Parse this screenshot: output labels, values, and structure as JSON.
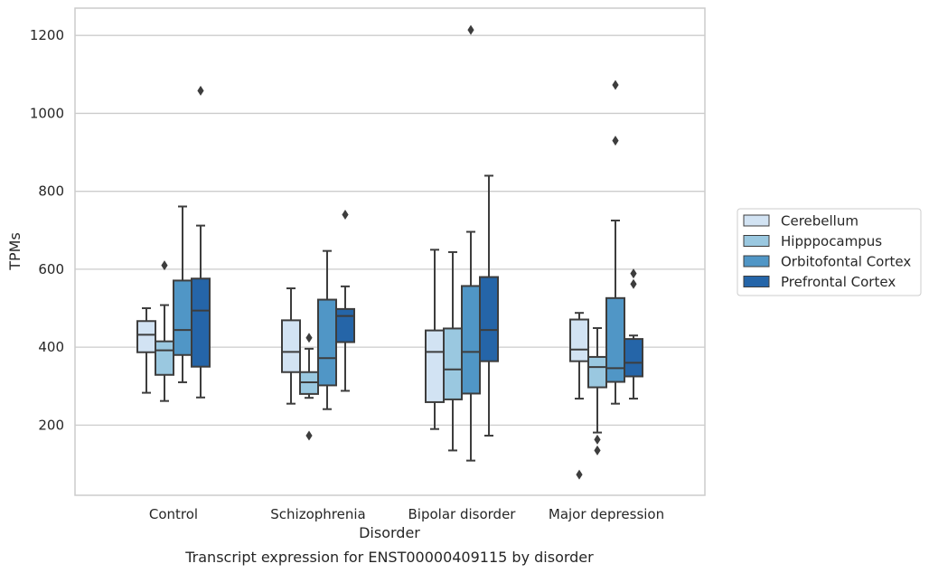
{
  "chart_data": {
    "type": "boxplot",
    "caption": "Transcript expression for ENST00000409115 by disorder",
    "xlabel": "Disorder",
    "ylabel": "TPMs",
    "ylim": [
      20,
      1270
    ],
    "yticks": [
      200,
      400,
      600,
      800,
      1000,
      1200
    ],
    "grid": "horizontal",
    "legend_position": "right",
    "categories": [
      "Control",
      "Schizophrenia",
      "Bipolar disorder",
      "Major depression"
    ],
    "series": [
      {
        "name": "Cerebellum",
        "color": "#d2e3f3",
        "boxes": [
          {
            "min": 283,
            "q1": 387,
            "median": 432,
            "q3": 467,
            "max": 500,
            "outliers": []
          },
          {
            "min": 255,
            "q1": 336,
            "median": 388,
            "q3": 469,
            "max": 551,
            "outliers": []
          },
          {
            "min": 190,
            "q1": 259,
            "median": 388,
            "q3": 443,
            "max": 650,
            "outliers": []
          },
          {
            "min": 268,
            "q1": 364,
            "median": 394,
            "q3": 471,
            "max": 488,
            "outliers": [
              73
            ]
          }
        ]
      },
      {
        "name": "Hipppocampus",
        "color": "#9ac8e0",
        "boxes": [
          {
            "min": 262,
            "q1": 329,
            "median": 392,
            "q3": 415,
            "max": 508,
            "outliers": [
              610
            ]
          },
          {
            "min": 270,
            "q1": 280,
            "median": 310,
            "q3": 336,
            "max": 396,
            "outliers": [
              424,
              173
            ]
          },
          {
            "min": 135,
            "q1": 266,
            "median": 343,
            "q3": 448,
            "max": 644,
            "outliers": []
          },
          {
            "min": 181,
            "q1": 297,
            "median": 349,
            "q3": 375,
            "max": 449,
            "outliers": [
              163,
              135
            ]
          }
        ]
      },
      {
        "name": "Orbitofontal Cortex",
        "color": "#5096c6",
        "boxes": [
          {
            "min": 310,
            "q1": 380,
            "median": 444,
            "q3": 571,
            "max": 761,
            "outliers": []
          },
          {
            "min": 241,
            "q1": 302,
            "median": 372,
            "q3": 522,
            "max": 647,
            "outliers": []
          },
          {
            "min": 109,
            "q1": 281,
            "median": 388,
            "q3": 557,
            "max": 696,
            "outliers": [
              1214
            ]
          },
          {
            "min": 255,
            "q1": 311,
            "median": 346,
            "q3": 526,
            "max": 725,
            "outliers": [
              930,
              1073
            ]
          }
        ]
      },
      {
        "name": "Prefrontal Cortex",
        "color": "#2565a8",
        "boxes": [
          {
            "min": 271,
            "q1": 350,
            "median": 494,
            "q3": 576,
            "max": 712,
            "outliers": [
              1058
            ]
          },
          {
            "min": 288,
            "q1": 413,
            "median": 480,
            "q3": 498,
            "max": 556,
            "outliers": [
              740
            ]
          },
          {
            "min": 173,
            "q1": 364,
            "median": 444,
            "q3": 580,
            "max": 840,
            "outliers": []
          },
          {
            "min": 268,
            "q1": 325,
            "median": 360,
            "q3": 421,
            "max": 430,
            "outliers": [
              589,
              562
            ]
          }
        ]
      }
    ]
  }
}
